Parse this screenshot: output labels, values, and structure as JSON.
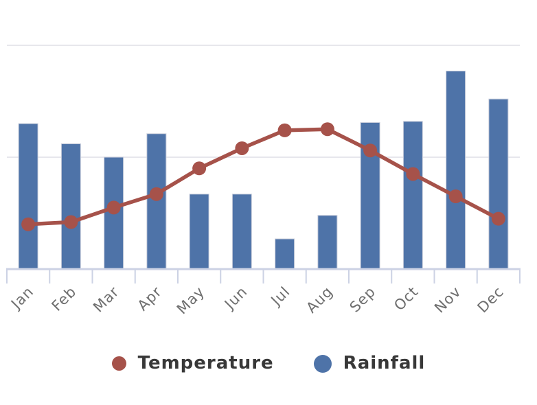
{
  "colors": {
    "background": "#ffffff",
    "gridline": "#e7e7ec",
    "axis_line": "#ccd2e4",
    "bar_border": "#c9cedb",
    "tick_label": "#6e6e6e",
    "legend_text": "#383838"
  },
  "chart_data": {
    "type": "combo",
    "categories": [
      "Jan",
      "Feb",
      "Mar",
      "Apr",
      "May",
      "Jun",
      "Jul",
      "Aug",
      "Sep",
      "Oct",
      "Nov",
      "Dec"
    ],
    "series": [
      {
        "name": "Temperature",
        "type": "line",
        "color": "#a6524a",
        "marker": "circle",
        "values": [
          20,
          21,
          27.5,
          33.5,
          45,
          54,
          62,
          62.5,
          53,
          42.5,
          32.5,
          22.5
        ]
      },
      {
        "name": "Rainfall",
        "type": "bar",
        "color": "#4e73a8",
        "values": [
          65,
          56,
          50,
          60.5,
          33.5,
          33.5,
          13.5,
          24,
          65.5,
          66,
          88.5,
          76
        ]
      }
    ],
    "ylim": [
      0,
      100
    ],
    "gridlines": [
      50,
      100
    ],
    "y_axis_labels_visible": false,
    "x_tick_label_rotation": -45,
    "legend_position": "bottom"
  }
}
